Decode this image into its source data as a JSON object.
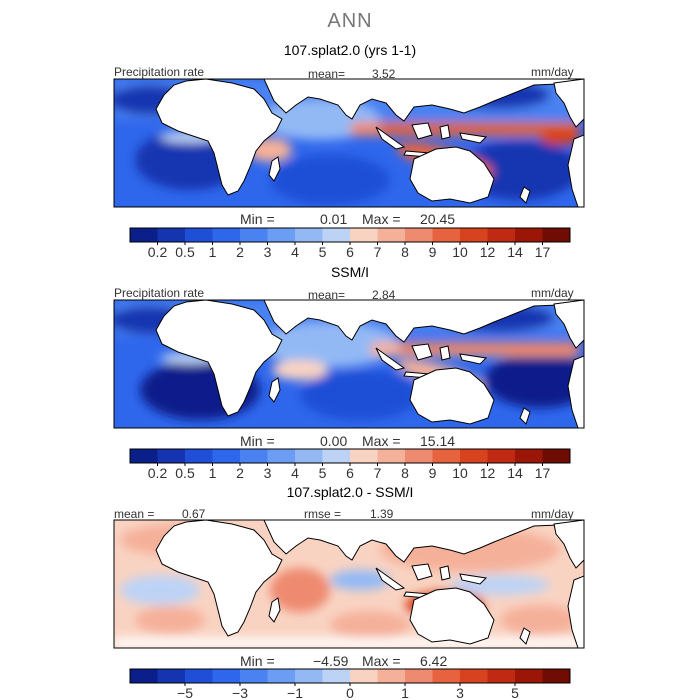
{
  "season": "ANN",
  "panels": [
    {
      "title": "107.splat2.0 (yrs 1-1)",
      "left_label": "Precipitation rate",
      "mean_label": "mean=",
      "mean_value": "3.52",
      "units": "mm/day",
      "min_label": "Min =",
      "min_value": "0.01",
      "max_label": "Max =",
      "max_value": "20.45"
    },
    {
      "title": "SSM/I",
      "left_label": "Precipitation rate",
      "mean_label": "mean=",
      "mean_value": "2.84",
      "units": "mm/day",
      "min_label": "Min =",
      "min_value": "0.00",
      "max_label": "Max =",
      "max_value": "15.14"
    },
    {
      "title": "107.splat2.0 - SSM/I",
      "left_label": "mean =",
      "left_value": "0.67",
      "mid_label": "rmse =",
      "mid_value": "1.39",
      "units": "mm/day",
      "min_label": "Min =",
      "min_value": "−4.59",
      "max_label": "Max =",
      "max_value": "6.42"
    }
  ],
  "chart_data": [
    {
      "type": "heatmap",
      "title": "107.splat2.0 (yrs 1-1)",
      "variable": "Precipitation rate",
      "units": "mm/day",
      "mean": 3.52,
      "min": 0.01,
      "max": 20.45,
      "colorbar_ticks": [
        "0.2",
        "0.5",
        "1",
        "2",
        "3",
        "4",
        "5",
        "6",
        "7",
        "8",
        "9",
        "10",
        "12",
        "14",
        "17"
      ],
      "colorbar_colors": [
        "#0a1f8a",
        "#1535b0",
        "#1f4fd6",
        "#2f67ec",
        "#4a82f2",
        "#6c9df4",
        "#93b9f5",
        "#bdd3f6",
        "#f9d3c2",
        "#f5b09a",
        "#ee8a6f",
        "#e7633f",
        "#d8431f",
        "#c02a13",
        "#9c1608",
        "#700c04"
      ]
    },
    {
      "type": "heatmap",
      "title": "SSM/I",
      "variable": "Precipitation rate",
      "units": "mm/day",
      "mean": 2.84,
      "min": 0.0,
      "max": 15.14,
      "colorbar_ticks": [
        "0.2",
        "0.5",
        "1",
        "2",
        "3",
        "4",
        "5",
        "6",
        "7",
        "8",
        "9",
        "10",
        "12",
        "14",
        "17"
      ],
      "colorbar_colors": [
        "#0a1f8a",
        "#1535b0",
        "#1f4fd6",
        "#2f67ec",
        "#4a82f2",
        "#6c9df4",
        "#93b9f5",
        "#bdd3f6",
        "#f9d3c2",
        "#f5b09a",
        "#ee8a6f",
        "#e7633f",
        "#d8431f",
        "#c02a13",
        "#9c1608",
        "#700c04"
      ]
    },
    {
      "type": "heatmap",
      "title": "107.splat2.0 - SSM/I",
      "units": "mm/day",
      "mean": 0.67,
      "rmse": 1.39,
      "min": -4.59,
      "max": 6.42,
      "colorbar_ticks": [
        "−5",
        "−3",
        "−1",
        "0",
        "1",
        "3",
        "5"
      ],
      "colorbar_colors": [
        "#0a1f8a",
        "#1535b0",
        "#1f4fd6",
        "#2f67ec",
        "#4a82f2",
        "#6c9df4",
        "#93b9f5",
        "#bdd3f6",
        "#f9d3c2",
        "#f5b09a",
        "#ee8a6f",
        "#e7633f",
        "#d8431f",
        "#c02a13",
        "#9c1608",
        "#700c04"
      ]
    }
  ]
}
